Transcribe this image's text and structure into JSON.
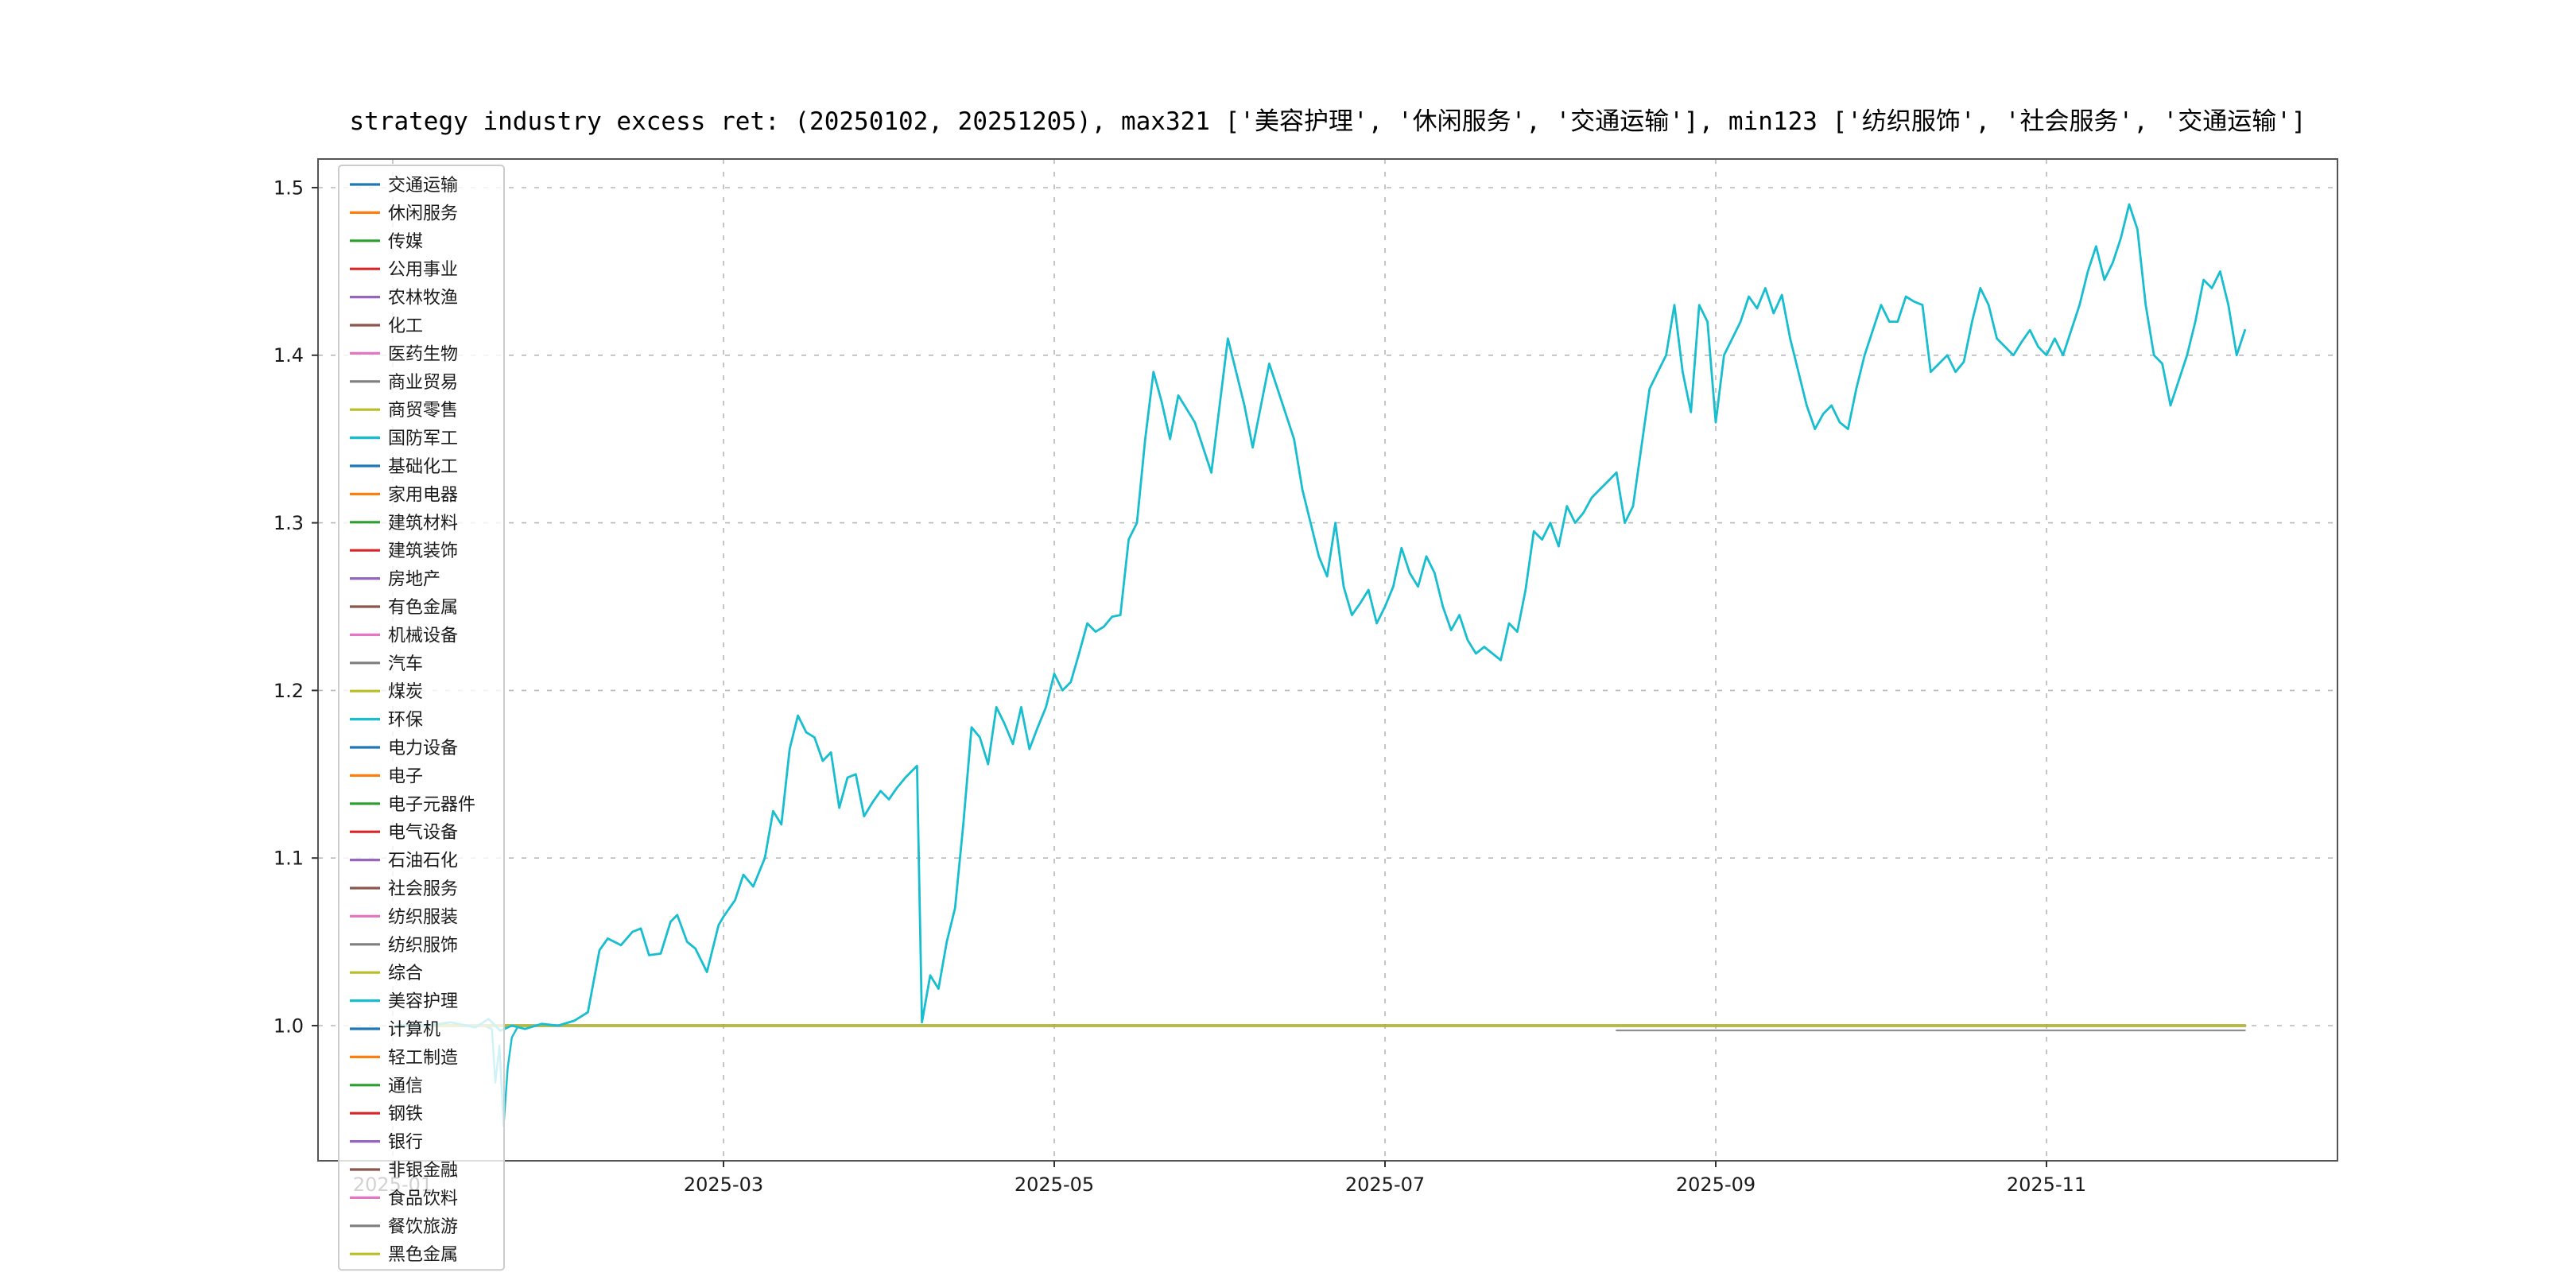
{
  "chart_data": {
    "type": "line",
    "title": "strategy industry excess ret: (20250102, 20251205), max321 ['美容护理', '休闲服务', '交通运输'], min123 ['纺织服饰', '社会服务', '交通运输']",
    "x_axis": {
      "tick_labels": [
        "2025-01",
        "2025-03",
        "2025-05",
        "2025-07",
        "2025-09",
        "2025-11"
      ],
      "tick_positions_months": [
        0,
        2,
        4,
        6,
        8,
        10
      ],
      "unit": "months since 2025-01-01",
      "range_months": [
        -0.45,
        11.76
      ],
      "date_range": [
        "20250102",
        "20251205"
      ]
    },
    "y_axis": {
      "tick_labels": [
        "1.0",
        "1.1",
        "1.2",
        "1.3",
        "1.4",
        "1.5"
      ],
      "tick_values": [
        1.0,
        1.1,
        1.2,
        1.3,
        1.4,
        1.5
      ],
      "range": [
        0.919,
        1.517
      ],
      "grid": true,
      "grid_style": "dashed"
    },
    "legend": {
      "position": "upper left (overflows below axes)",
      "items": [
        {
          "label": "交通运输",
          "color": "#1f77b4"
        },
        {
          "label": "休闲服务",
          "color": "#ff7f0e"
        },
        {
          "label": "传媒",
          "color": "#2ca02c"
        },
        {
          "label": "公用事业",
          "color": "#d62728"
        },
        {
          "label": "农林牧渔",
          "color": "#9467bd"
        },
        {
          "label": "化工",
          "color": "#8c564b"
        },
        {
          "label": "医药生物",
          "color": "#e377c2"
        },
        {
          "label": "商业贸易",
          "color": "#7f7f7f"
        },
        {
          "label": "商贸零售",
          "color": "#bcbd22"
        },
        {
          "label": "国防军工",
          "color": "#17becf"
        },
        {
          "label": "基础化工",
          "color": "#1f77b4"
        },
        {
          "label": "家用电器",
          "color": "#ff7f0e"
        },
        {
          "label": "建筑材料",
          "color": "#2ca02c"
        },
        {
          "label": "建筑装饰",
          "color": "#d62728"
        },
        {
          "label": "房地产",
          "color": "#9467bd"
        },
        {
          "label": "有色金属",
          "color": "#8c564b"
        },
        {
          "label": "机械设备",
          "color": "#e377c2"
        },
        {
          "label": "汽车",
          "color": "#7f7f7f"
        },
        {
          "label": "煤炭",
          "color": "#bcbd22"
        },
        {
          "label": "环保",
          "color": "#17becf"
        },
        {
          "label": "电力设备",
          "color": "#1f77b4"
        },
        {
          "label": "电子",
          "color": "#ff7f0e"
        },
        {
          "label": "电子元器件",
          "color": "#2ca02c"
        },
        {
          "label": "电气设备",
          "color": "#d62728"
        },
        {
          "label": "石油石化",
          "color": "#9467bd"
        },
        {
          "label": "社会服务",
          "color": "#8c564b"
        },
        {
          "label": "纺织服装",
          "color": "#e377c2"
        },
        {
          "label": "纺织服饰",
          "color": "#7f7f7f"
        },
        {
          "label": "综合",
          "color": "#bcbd22"
        },
        {
          "label": "美容护理",
          "color": "#17becf"
        },
        {
          "label": "计算机",
          "color": "#1f77b4"
        },
        {
          "label": "轻工制造",
          "color": "#ff7f0e"
        },
        {
          "label": "通信",
          "color": "#2ca02c"
        },
        {
          "label": "钢铁",
          "color": "#d62728"
        },
        {
          "label": "银行",
          "color": "#9467bd"
        },
        {
          "label": "非银金融",
          "color": "#8c564b"
        },
        {
          "label": "食品饮料",
          "color": "#e377c2"
        },
        {
          "label": "餐饮旅游",
          "color": "#7f7f7f"
        },
        {
          "label": "黑色金属",
          "color": "#bcbd22"
        }
      ]
    },
    "flat_series_note": "All industries except 美容护理 plot ≈1.0 (flat overlapping lines) for the whole period",
    "series": [
      {
        "name": "industries-flat-overlap",
        "color": "#7f7f7f",
        "width": 1.8,
        "points": [
          [
            0.03,
            1.0
          ],
          [
            11.2,
            1.0
          ]
        ]
      },
      {
        "name": "环保",
        "color": "#17becf",
        "width": 1.2,
        "points": [
          [
            0.03,
            1.0
          ],
          [
            0.55,
            1.0
          ],
          [
            0.6,
            0.998
          ],
          [
            0.62,
            0.966
          ],
          [
            0.645,
            0.988
          ],
          [
            0.67,
            0.94
          ],
          [
            0.695,
            0.975
          ],
          [
            0.72,
            0.993
          ],
          [
            0.76,
            1.0
          ],
          [
            1.2,
            1.0
          ]
        ]
      },
      {
        "name": "flat-late-below",
        "color": "#8f8f8f",
        "width": 1.1,
        "points": [
          [
            7.4,
            0.9972
          ],
          [
            11.2,
            0.9972
          ]
        ]
      },
      {
        "name": "industries-flat-top",
        "color": "#bcbd22",
        "width": 1.4,
        "points": [
          [
            0.03,
            1.0
          ],
          [
            11.2,
            1.0
          ]
        ]
      },
      {
        "name": "美容护理",
        "color": "#17becf",
        "width": 1.4,
        "points": [
          [
            0.03,
            1.0
          ],
          [
            0.2,
            1.0
          ],
          [
            0.35,
            1.002
          ],
          [
            0.5,
            0.999
          ],
          [
            0.58,
            1.004
          ],
          [
            0.65,
            0.997
          ],
          [
            0.72,
            1.0
          ],
          [
            0.8,
            0.998
          ],
          [
            0.9,
            1.001
          ],
          [
            1.0,
            1.0
          ],
          [
            1.1,
            1.003
          ],
          [
            1.18,
            1.008
          ],
          [
            1.25,
            1.045
          ],
          [
            1.3,
            1.052
          ],
          [
            1.38,
            1.048
          ],
          [
            1.45,
            1.056
          ],
          [
            1.5,
            1.058
          ],
          [
            1.55,
            1.042
          ],
          [
            1.62,
            1.043
          ],
          [
            1.68,
            1.062
          ],
          [
            1.72,
            1.066
          ],
          [
            1.78,
            1.05
          ],
          [
            1.83,
            1.046
          ],
          [
            1.9,
            1.032
          ],
          [
            1.97,
            1.06
          ],
          [
            2.0,
            1.065
          ],
          [
            2.07,
            1.075
          ],
          [
            2.12,
            1.09
          ],
          [
            2.18,
            1.083
          ],
          [
            2.25,
            1.1
          ],
          [
            2.3,
            1.128
          ],
          [
            2.35,
            1.12
          ],
          [
            2.4,
            1.165
          ],
          [
            2.45,
            1.185
          ],
          [
            2.5,
            1.175
          ],
          [
            2.55,
            1.172
          ],
          [
            2.6,
            1.158
          ],
          [
            2.65,
            1.163
          ],
          [
            2.7,
            1.13
          ],
          [
            2.75,
            1.148
          ],
          [
            2.8,
            1.15
          ],
          [
            2.85,
            1.125
          ],
          [
            2.9,
            1.133
          ],
          [
            2.95,
            1.14
          ],
          [
            3.0,
            1.135
          ],
          [
            3.05,
            1.142
          ],
          [
            3.1,
            1.148
          ],
          [
            3.17,
            1.155
          ],
          [
            3.2,
            1.002
          ],
          [
            3.25,
            1.03
          ],
          [
            3.3,
            1.022
          ],
          [
            3.35,
            1.05
          ],
          [
            3.4,
            1.07
          ],
          [
            3.45,
            1.12
          ],
          [
            3.5,
            1.178
          ],
          [
            3.55,
            1.172
          ],
          [
            3.6,
            1.156
          ],
          [
            3.65,
            1.19
          ],
          [
            3.7,
            1.18
          ],
          [
            3.75,
            1.168
          ],
          [
            3.8,
            1.19
          ],
          [
            3.85,
            1.165
          ],
          [
            3.9,
            1.178
          ],
          [
            3.95,
            1.19
          ],
          [
            4.0,
            1.21
          ],
          [
            4.05,
            1.2
          ],
          [
            4.1,
            1.205
          ],
          [
            4.15,
            1.222
          ],
          [
            4.2,
            1.24
          ],
          [
            4.25,
            1.235
          ],
          [
            4.3,
            1.238
          ],
          [
            4.35,
            1.244
          ],
          [
            4.4,
            1.245
          ],
          [
            4.45,
            1.29
          ],
          [
            4.5,
            1.3
          ],
          [
            4.55,
            1.35
          ],
          [
            4.6,
            1.39
          ],
          [
            4.65,
            1.372
          ],
          [
            4.7,
            1.35
          ],
          [
            4.75,
            1.376
          ],
          [
            4.8,
            1.368
          ],
          [
            4.85,
            1.36
          ],
          [
            4.9,
            1.345
          ],
          [
            4.95,
            1.33
          ],
          [
            5.0,
            1.37
          ],
          [
            5.05,
            1.41
          ],
          [
            5.1,
            1.39
          ],
          [
            5.15,
            1.37
          ],
          [
            5.2,
            1.345
          ],
          [
            5.25,
            1.37
          ],
          [
            5.3,
            1.395
          ],
          [
            5.35,
            1.38
          ],
          [
            5.4,
            1.365
          ],
          [
            5.45,
            1.35
          ],
          [
            5.5,
            1.32
          ],
          [
            5.55,
            1.3
          ],
          [
            5.6,
            1.28
          ],
          [
            5.65,
            1.268
          ],
          [
            5.7,
            1.3
          ],
          [
            5.75,
            1.262
          ],
          [
            5.8,
            1.245
          ],
          [
            5.85,
            1.252
          ],
          [
            5.9,
            1.26
          ],
          [
            5.95,
            1.24
          ],
          [
            6.0,
            1.25
          ],
          [
            6.05,
            1.262
          ],
          [
            6.1,
            1.285
          ],
          [
            6.15,
            1.27
          ],
          [
            6.2,
            1.262
          ],
          [
            6.25,
            1.28
          ],
          [
            6.3,
            1.27
          ],
          [
            6.35,
            1.25
          ],
          [
            6.4,
            1.236
          ],
          [
            6.45,
            1.245
          ],
          [
            6.5,
            1.23
          ],
          [
            6.55,
            1.222
          ],
          [
            6.6,
            1.226
          ],
          [
            6.65,
            1.222
          ],
          [
            6.7,
            1.218
          ],
          [
            6.75,
            1.24
          ],
          [
            6.8,
            1.235
          ],
          [
            6.85,
            1.26
          ],
          [
            6.9,
            1.295
          ],
          [
            6.95,
            1.29
          ],
          [
            7.0,
            1.3
          ],
          [
            7.05,
            1.286
          ],
          [
            7.1,
            1.31
          ],
          [
            7.15,
            1.3
          ],
          [
            7.2,
            1.306
          ],
          [
            7.25,
            1.315
          ],
          [
            7.3,
            1.32
          ],
          [
            7.35,
            1.325
          ],
          [
            7.4,
            1.33
          ],
          [
            7.45,
            1.3
          ],
          [
            7.5,
            1.31
          ],
          [
            7.55,
            1.345
          ],
          [
            7.6,
            1.38
          ],
          [
            7.65,
            1.39
          ],
          [
            7.7,
            1.4
          ],
          [
            7.75,
            1.43
          ],
          [
            7.8,
            1.39
          ],
          [
            7.85,
            1.366
          ],
          [
            7.9,
            1.43
          ],
          [
            7.95,
            1.42
          ],
          [
            8.0,
            1.36
          ],
          [
            8.05,
            1.4
          ],
          [
            8.1,
            1.41
          ],
          [
            8.15,
            1.42
          ],
          [
            8.2,
            1.435
          ],
          [
            8.25,
            1.428
          ],
          [
            8.3,
            1.44
          ],
          [
            8.35,
            1.425
          ],
          [
            8.4,
            1.436
          ],
          [
            8.45,
            1.41
          ],
          [
            8.5,
            1.39
          ],
          [
            8.55,
            1.37
          ],
          [
            8.6,
            1.356
          ],
          [
            8.65,
            1.365
          ],
          [
            8.7,
            1.37
          ],
          [
            8.75,
            1.36
          ],
          [
            8.8,
            1.356
          ],
          [
            8.85,
            1.38
          ],
          [
            8.9,
            1.4
          ],
          [
            8.95,
            1.415
          ],
          [
            9.0,
            1.43
          ],
          [
            9.05,
            1.42
          ],
          [
            9.1,
            1.42
          ],
          [
            9.15,
            1.435
          ],
          [
            9.2,
            1.432
          ],
          [
            9.25,
            1.43
          ],
          [
            9.3,
            1.39
          ],
          [
            9.35,
            1.395
          ],
          [
            9.4,
            1.4
          ],
          [
            9.45,
            1.39
          ],
          [
            9.5,
            1.396
          ],
          [
            9.55,
            1.42
          ],
          [
            9.6,
            1.44
          ],
          [
            9.65,
            1.43
          ],
          [
            9.7,
            1.41
          ],
          [
            9.75,
            1.405
          ],
          [
            9.8,
            1.4
          ],
          [
            9.85,
            1.408
          ],
          [
            9.9,
            1.415
          ],
          [
            9.95,
            1.405
          ],
          [
            10.0,
            1.4
          ],
          [
            10.05,
            1.41
          ],
          [
            10.1,
            1.4
          ],
          [
            10.15,
            1.415
          ],
          [
            10.2,
            1.43
          ],
          [
            10.25,
            1.45
          ],
          [
            10.3,
            1.465
          ],
          [
            10.35,
            1.445
          ],
          [
            10.4,
            1.455
          ],
          [
            10.45,
            1.47
          ],
          [
            10.5,
            1.49
          ],
          [
            10.55,
            1.475
          ],
          [
            10.6,
            1.43
          ],
          [
            10.65,
            1.4
          ],
          [
            10.7,
            1.395
          ],
          [
            10.75,
            1.37
          ],
          [
            10.8,
            1.385
          ],
          [
            10.85,
            1.4
          ],
          [
            10.9,
            1.42
          ],
          [
            10.95,
            1.445
          ],
          [
            11.0,
            1.44
          ],
          [
            11.05,
            1.45
          ],
          [
            11.1,
            1.43
          ],
          [
            11.15,
            1.4
          ],
          [
            11.2,
            1.415
          ]
        ]
      }
    ],
    "colors": {
      "grid": "#b8b8b8",
      "frame": "#555555",
      "legend_border": "#cccccc",
      "legend_fill": "rgba(255,255,255,0.8)",
      "highlight_series": "#17becf"
    }
  }
}
